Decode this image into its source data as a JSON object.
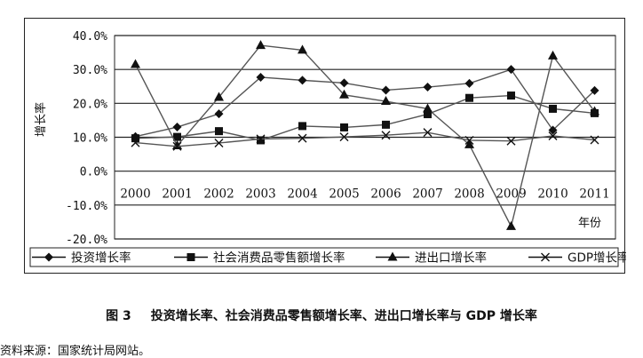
{
  "chart_data": {
    "type": "line",
    "title": "",
    "xlabel": "年份",
    "ylabel": "增长率",
    "categories": [
      "2000",
      "2001",
      "2002",
      "2003",
      "2004",
      "2005",
      "2006",
      "2007",
      "2008",
      "2009",
      "2010",
      "2011"
    ],
    "ylim": [
      -20,
      40
    ],
    "yticks": [
      "40.0%",
      "30.0%",
      "20.0%",
      "10.0%",
      "0.0%",
      "-10.0%",
      "-20.0%"
    ],
    "grid": "horizontal",
    "legend_position": "bottom",
    "series": [
      {
        "name": "投资增长率",
        "marker": "diamond",
        "values": [
          10.2,
          13.0,
          16.9,
          27.7,
          26.8,
          26.0,
          23.9,
          24.8,
          25.9,
          30.0,
          12.1,
          23.8
        ]
      },
      {
        "name": "社会消费品零售额增长率",
        "marker": "square",
        "values": [
          9.7,
          10.1,
          11.8,
          9.1,
          13.3,
          12.9,
          13.7,
          16.8,
          21.6,
          22.3,
          18.4,
          17.1
        ]
      },
      {
        "name": "进出口增长率",
        "marker": "triangle",
        "values": [
          31.5,
          7.5,
          21.8,
          37.1,
          35.7,
          22.5,
          20.6,
          18.4,
          7.8,
          -16.3,
          34.0,
          17.6
        ]
      },
      {
        "name": "GDP增长率",
        "marker": "x",
        "values": [
          8.4,
          7.3,
          8.3,
          9.5,
          9.7,
          10.1,
          10.6,
          11.4,
          9.1,
          8.9,
          10.4,
          9.2
        ]
      }
    ]
  },
  "caption": {
    "figure_no": "图 3",
    "text": "投资增长率、社会消费品零售额增长率、进出口增长率与 GDP 增长率"
  },
  "source": "资料来源：国家统计局网站。"
}
